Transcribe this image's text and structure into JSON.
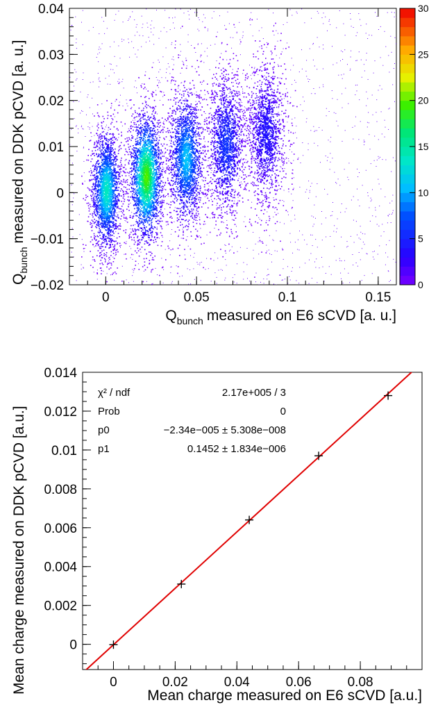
{
  "chart_data": [
    {
      "type": "heatmap",
      "title": "",
      "xlabel": "measured on E6 sCVD [a. u.]",
      "xlabel_symbol": "Q",
      "xlabel_subscript": "bunch",
      "ylabel": "measured on DDK pCVD [a. u.]",
      "ylabel_symbol": "Q",
      "ylabel_subscript": "bunch",
      "xlim": [
        -0.02,
        0.16
      ],
      "ylim": [
        -0.02,
        0.04
      ],
      "x_ticks": [
        0,
        0.05,
        0.1,
        0.15
      ],
      "x_tick_labels": [
        "0",
        "0.05",
        "0.1",
        "0.15"
      ],
      "y_ticks": [
        -0.02,
        -0.01,
        0,
        0.01,
        0.02,
        0.03,
        0.04
      ],
      "y_tick_labels": [
        "−0.02",
        "−0.01",
        "0",
        "0.01",
        "0.02",
        "0.03",
        "0.04"
      ],
      "colorbar": {
        "min": 0,
        "max": 30,
        "ticks": [
          0,
          5,
          10,
          15,
          20,
          25,
          30
        ],
        "tick_labels": [
          "0",
          "5",
          "10",
          "15",
          "20",
          "25",
          "30"
        ]
      },
      "clusters": [
        {
          "x": 0.0,
          "y": 0.0005,
          "peak_count": 14
        },
        {
          "x": 0.022,
          "y": 0.0035,
          "peak_count": 20
        },
        {
          "x": 0.044,
          "y": 0.0075,
          "peak_count": 11
        },
        {
          "x": 0.066,
          "y": 0.0105,
          "peak_count": 6
        },
        {
          "x": 0.088,
          "y": 0.013,
          "peak_count": 4
        }
      ],
      "grid": false
    },
    {
      "type": "scatter",
      "title": "",
      "xlabel": "Mean charge measured on E6 sCVD [a.u.]",
      "ylabel": "Mean charge measured on DDK pCVD [a.u.]",
      "xlim": [
        -0.01,
        0.1
      ],
      "ylim": [
        -0.0013,
        0.014
      ],
      "x_ticks": [
        0,
        0.02,
        0.04,
        0.06,
        0.08
      ],
      "x_tick_labels": [
        "0",
        "0.02",
        "0.04",
        "0.06",
        "0.08"
      ],
      "y_ticks": [
        0,
        0.002,
        0.004,
        0.006,
        0.008,
        0.01,
        0.012,
        0.014
      ],
      "y_tick_labels": [
        "0",
        "0.002",
        "0.004",
        "0.006",
        "0.008",
        "0.01",
        "0.012",
        "0.014"
      ],
      "points": [
        {
          "x": 0.0,
          "y": -2e-05
        },
        {
          "x": 0.022,
          "y": 0.0031
        },
        {
          "x": 0.044,
          "y": 0.0064
        },
        {
          "x": 0.0665,
          "y": 0.0097
        },
        {
          "x": 0.089,
          "y": 0.0128
        }
      ],
      "fit": {
        "intercept": -2.34e-05,
        "slope": 0.1452,
        "color": "#e00000"
      },
      "stats_box": [
        {
          "label": "χ² / ndf",
          "value": "2.17e+005 / 3"
        },
        {
          "label": "Prob",
          "value": "0"
        },
        {
          "label": "p0",
          "value": "−2.34e−005 ± 5.308e−008"
        },
        {
          "label": "p1",
          "value": "0.1452 ± 1.834e−006"
        }
      ],
      "grid": false
    }
  ]
}
